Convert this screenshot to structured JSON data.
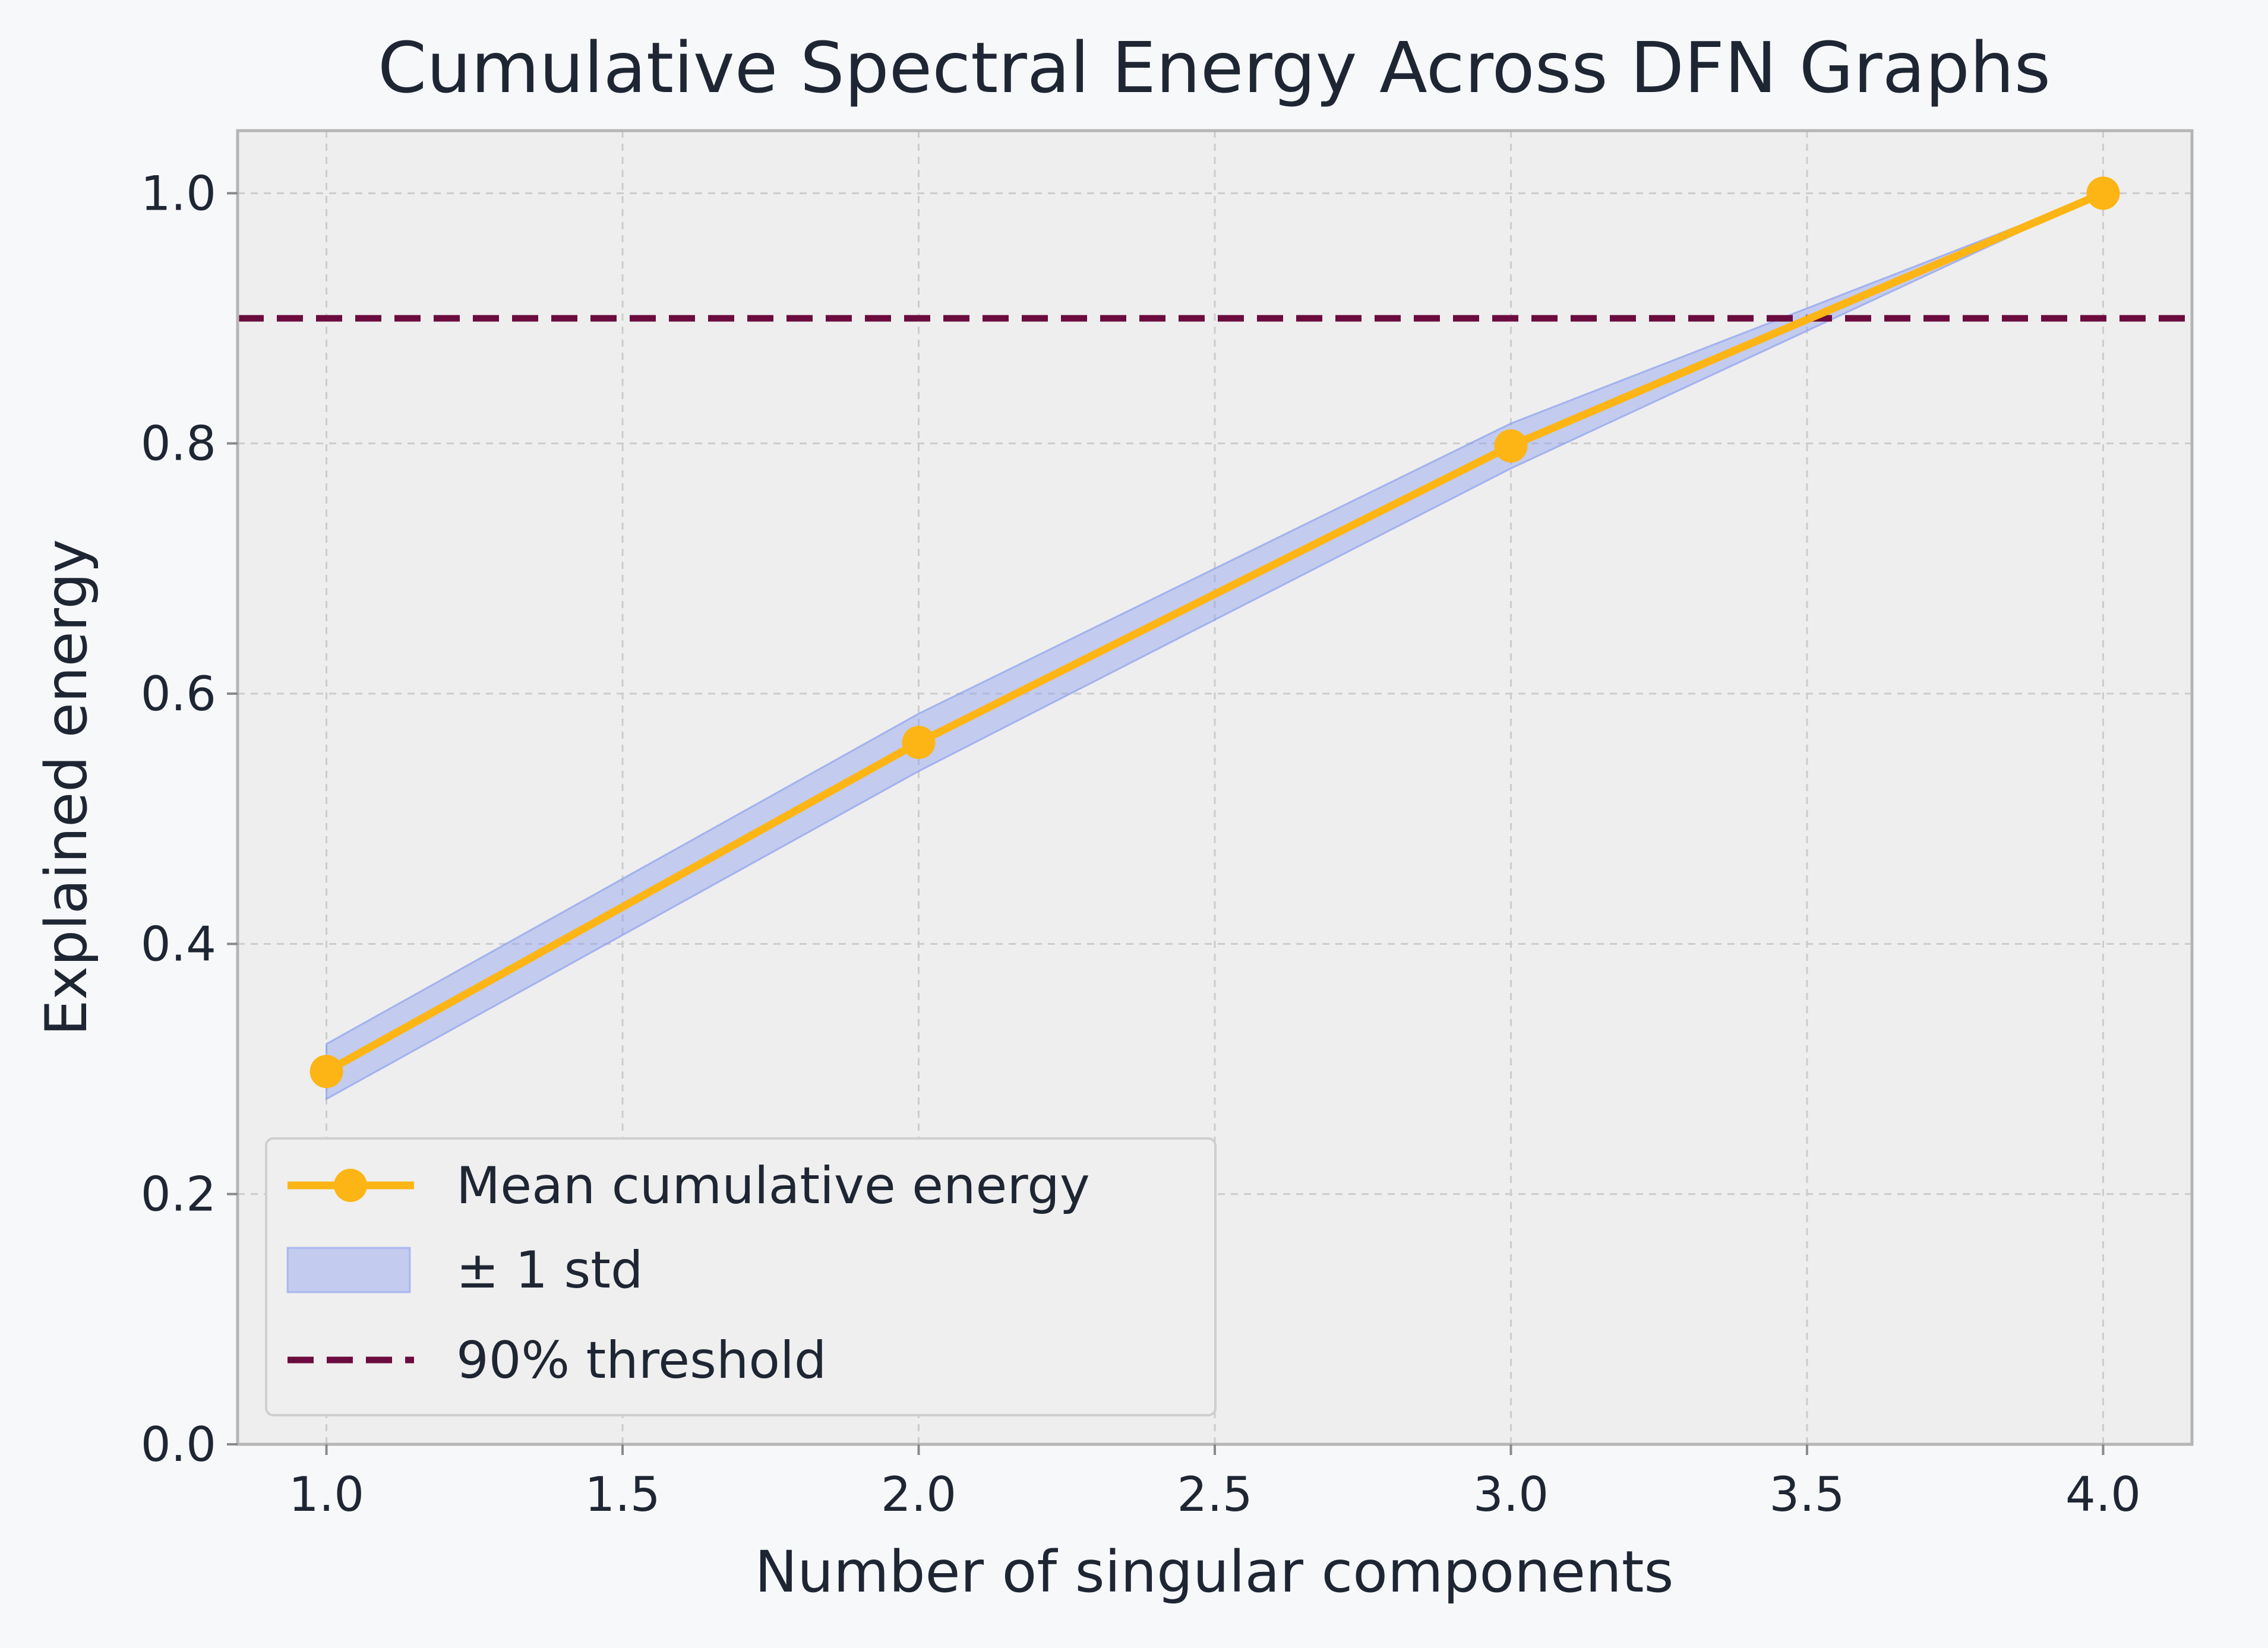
{
  "chart_data": {
    "type": "line",
    "title": "Cumulative Spectral Energy Across DFN Graphs",
    "xlabel": "Number of singular components",
    "ylabel": "Explained energy",
    "xlim": [
      0.85,
      4.15
    ],
    "ylim": [
      0.0,
      1.05
    ],
    "xticks": [
      "1.0",
      "1.5",
      "2.0",
      "2.5",
      "3.0",
      "3.5",
      "4.0"
    ],
    "yticks": [
      "0.0",
      "0.2",
      "0.4",
      "0.6",
      "0.8",
      "1.0"
    ],
    "grid": true,
    "legend_position": "lower-left",
    "x": [
      1,
      2,
      3,
      4
    ],
    "series": [
      {
        "name": "Mean cumulative energy",
        "values": [
          0.298,
          0.561,
          0.798,
          1.0
        ],
        "color": "#FDB515",
        "marker": "circle"
      }
    ],
    "band": {
      "name": "± 1 std",
      "lower": [
        0.276,
        0.538,
        0.78,
        1.0
      ],
      "upper": [
        0.32,
        0.584,
        0.816,
        1.0
      ],
      "color": "#8da0ee"
    },
    "threshold": {
      "name": "90% threshold",
      "value": 0.9,
      "color": "#6b0b3e",
      "style": "dashed"
    }
  },
  "colors": {
    "background": "#f7f8fa",
    "plot_background": "#eeeeee",
    "grid": "#cccccc",
    "axes": "#b5b5b5",
    "text": "#1f2633"
  }
}
